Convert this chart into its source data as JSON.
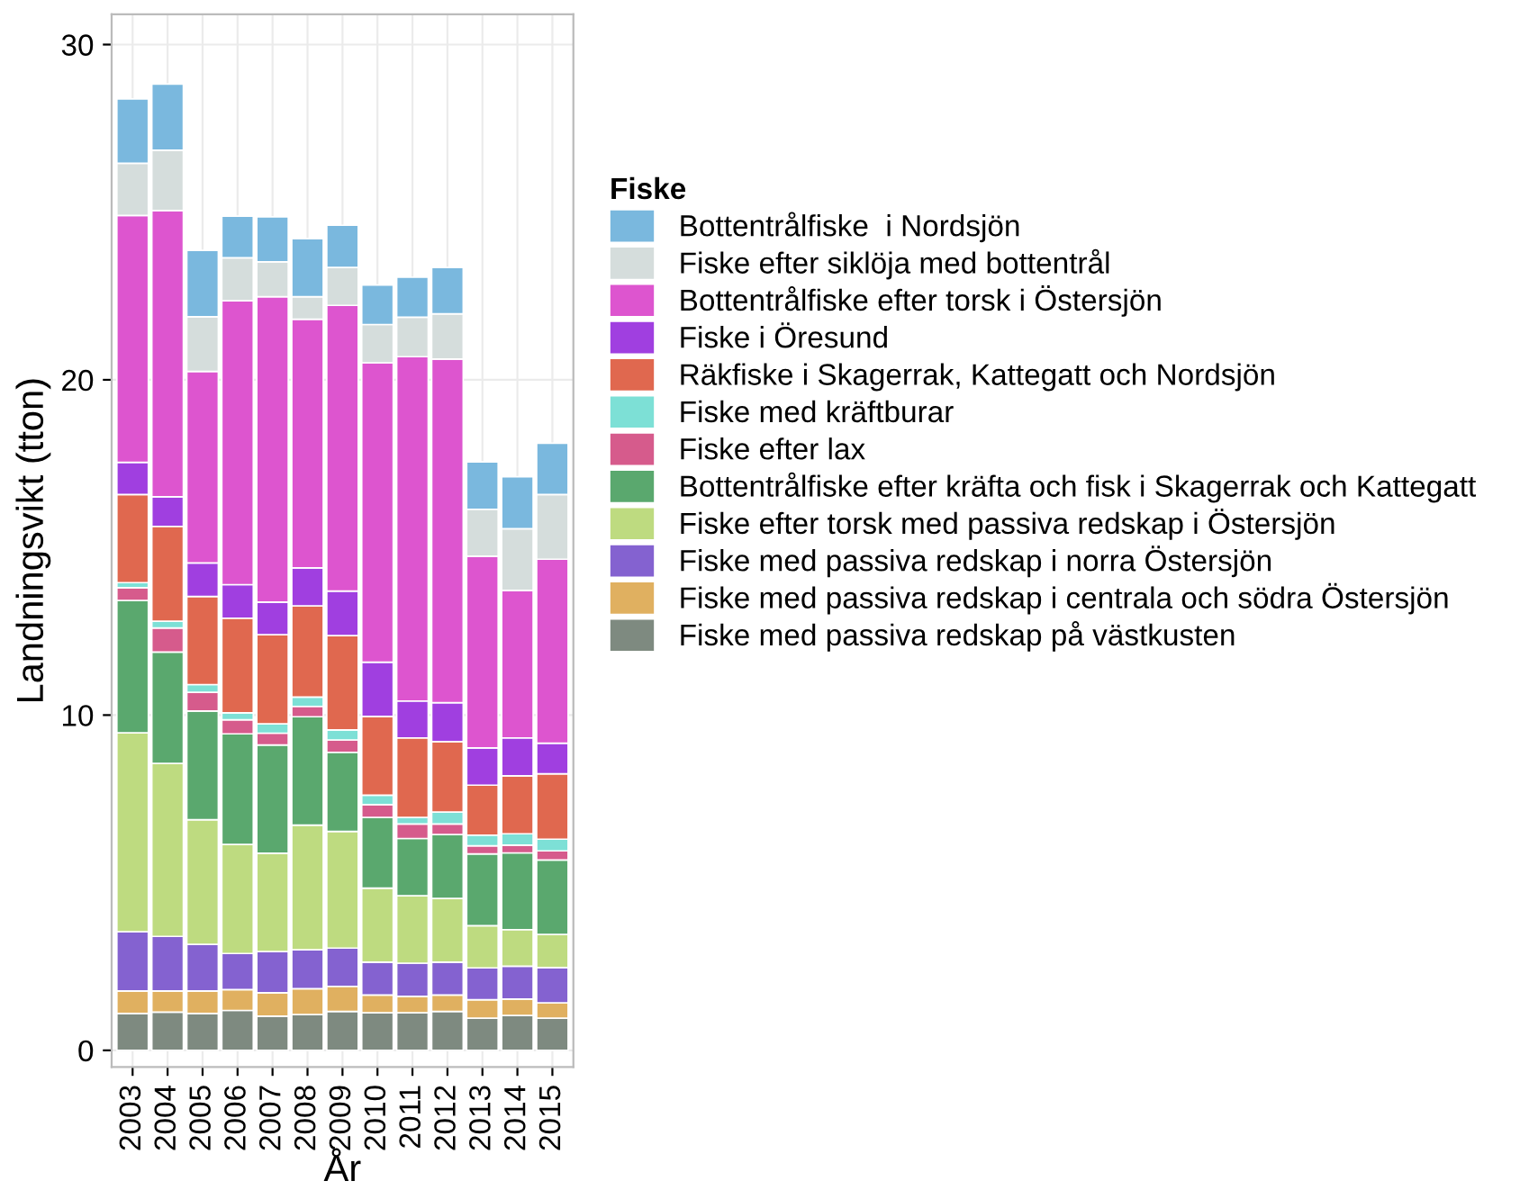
{
  "chart_data": {
    "type": "bar",
    "stacked": true,
    "xlabel": "År",
    "ylabel": "Landningsvikt (tton)",
    "legend_title": "Fiske",
    "legend": "right",
    "grid": true,
    "categories": [
      "2003",
      "2004",
      "2005",
      "2006",
      "2007",
      "2008",
      "2009",
      "2010",
      "2011",
      "2012",
      "2013",
      "2014",
      "2015"
    ],
    "ylim": [
      -0.5,
      30.9
    ],
    "yticks": [
      0,
      10,
      20,
      30
    ],
    "series": [
      {
        "name": "Fiske med passiva redskap på västkusten",
        "color": "#7e8a80",
        "values": [
          1.1,
          1.14,
          1.1,
          1.19,
          1.02,
          1.07,
          1.16,
          1.12,
          1.12,
          1.16,
          0.96,
          1.04,
          0.96
        ]
      },
      {
        "name": "Fiske med passiva redskap i centrala och södra Östersjön",
        "color": "#e0b060",
        "values": [
          0.67,
          0.63,
          0.67,
          0.62,
          0.7,
          0.77,
          0.75,
          0.53,
          0.49,
          0.49,
          0.55,
          0.49,
          0.46
        ]
      },
      {
        "name": "Fiske med passiva redskap i norra Östersjön",
        "color": "#8462d0",
        "values": [
          1.77,
          1.63,
          1.39,
          1.08,
          1.23,
          1.16,
          1.14,
          0.98,
          0.99,
          0.98,
          0.95,
          0.98,
          1.05
        ]
      },
      {
        "name": "Fiske efter torsk med passiva redskap i Östersjön",
        "color": "#bedb80",
        "values": [
          5.93,
          5.16,
          3.72,
          3.25,
          2.93,
          3.72,
          3.48,
          2.21,
          2.01,
          1.9,
          1.26,
          1.09,
          0.99
        ]
      },
      {
        "name": "Bottentrålfiske efter kräfta och fisk i Skagerrak och Kattegatt",
        "color": "#5aa86e",
        "values": [
          3.95,
          3.32,
          3.24,
          3.3,
          3.23,
          3.23,
          2.36,
          2.11,
          1.71,
          1.91,
          2.14,
          2.29,
          2.22
        ]
      },
      {
        "name": "Fiske efter lax",
        "color": "#d65b8c",
        "values": [
          0.38,
          0.72,
          0.56,
          0.42,
          0.35,
          0.31,
          0.37,
          0.38,
          0.43,
          0.31,
          0.24,
          0.23,
          0.27
        ]
      },
      {
        "name": "Fiske med kräftburar",
        "color": "#7de0d6",
        "values": [
          0.15,
          0.2,
          0.23,
          0.21,
          0.28,
          0.28,
          0.3,
          0.28,
          0.2,
          0.36,
          0.32,
          0.34,
          0.35
        ]
      },
      {
        "name": "Räkfiske i Skagerrak, Kattegatt och Nordsjön",
        "color": "#e0684f",
        "values": [
          2.63,
          2.83,
          2.63,
          2.82,
          2.66,
          2.72,
          2.81,
          2.35,
          2.37,
          2.1,
          1.49,
          1.73,
          1.95
        ]
      },
      {
        "name": "Fiske i Öresund",
        "color": "#a03fe0",
        "values": [
          0.96,
          0.88,
          1.0,
          1.0,
          0.97,
          1.13,
          1.33,
          1.62,
          1.1,
          1.16,
          1.11,
          1.13,
          0.91
        ]
      },
      {
        "name": "Bottentrålfiske efter torsk i Östersjön",
        "color": "#dd55cf",
        "values": [
          7.36,
          8.54,
          5.71,
          8.47,
          9.11,
          7.42,
          8.52,
          8.93,
          10.27,
          10.25,
          5.72,
          4.4,
          5.49
        ]
      },
      {
        "name": "Fiske efter siklöja med bottentrål",
        "color": "#d5dddc",
        "values": [
          1.56,
          1.8,
          1.63,
          1.28,
          1.04,
          0.67,
          1.13,
          1.14,
          1.18,
          1.35,
          1.4,
          1.84,
          1.93
        ]
      },
      {
        "name": "Bottentrålfiske  i Nordsjön",
        "color": "#7ab8de",
        "values": [
          1.92,
          1.97,
          1.98,
          1.24,
          1.34,
          1.73,
          1.26,
          1.18,
          1.19,
          1.38,
          1.41,
          1.55,
          1.53
        ]
      }
    ]
  }
}
